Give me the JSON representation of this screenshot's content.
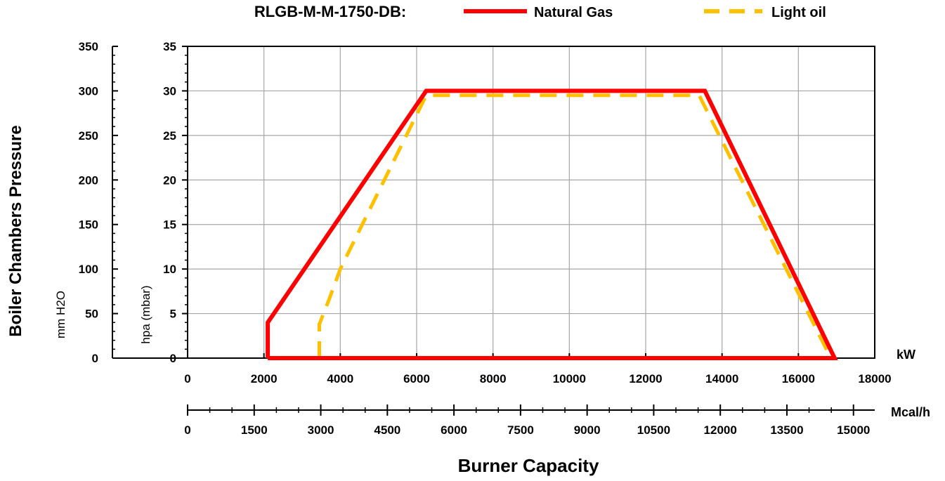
{
  "chart_data": {
    "type": "area",
    "title": "RLGB-M-M-1750-DB:",
    "xlabel": "Burner Capacity",
    "ylabel": "Boiler Chambers Pressure",
    "x_unit_primary": "kW",
    "x_unit_secondary": "Mcal/h",
    "y_unit_left": "mm H2O",
    "y_unit_right": "hpa (mbar)",
    "xlim_kw": [
      0,
      18000
    ],
    "xticks_kw": [
      "0",
      "2000",
      "4000",
      "6000",
      "8000",
      "10000",
      "12000",
      "14000",
      "16000",
      "18000"
    ],
    "xlim_mcal": [
      0,
      15479
    ],
    "xticks_mcal": [
      "0",
      "1500",
      "3000",
      "4500",
      "6000",
      "7500",
      "9000",
      "10500",
      "12000",
      "13500",
      "15000"
    ],
    "ylim_mmh2o": [
      0,
      350
    ],
    "yticks_mmh2o": [
      "0",
      "50",
      "100",
      "150",
      "200",
      "250",
      "300",
      "350"
    ],
    "ylim_hpa": [
      0,
      35
    ],
    "yticks_hpa": [
      "0",
      "5",
      "10",
      "15",
      "20",
      "25",
      "30",
      "35"
    ],
    "grid": true,
    "legend_position": "top",
    "series": [
      {
        "name": "Natural Gas",
        "color": "#ff0000",
        "style": "solid",
        "x": [
          2100,
          2100,
          6250,
          13550,
          16950,
          2100
        ],
        "y": [
          0,
          4,
          30,
          30,
          0,
          0
        ]
      },
      {
        "name": "Light oil",
        "color": "#ffc000",
        "style": "dashed",
        "x": [
          3450,
          3450,
          3700,
          4000,
          6250,
          13400,
          16850,
          3450
        ],
        "y": [
          0,
          3.8,
          6.5,
          10,
          29.5,
          29.5,
          0,
          0
        ]
      }
    ]
  }
}
